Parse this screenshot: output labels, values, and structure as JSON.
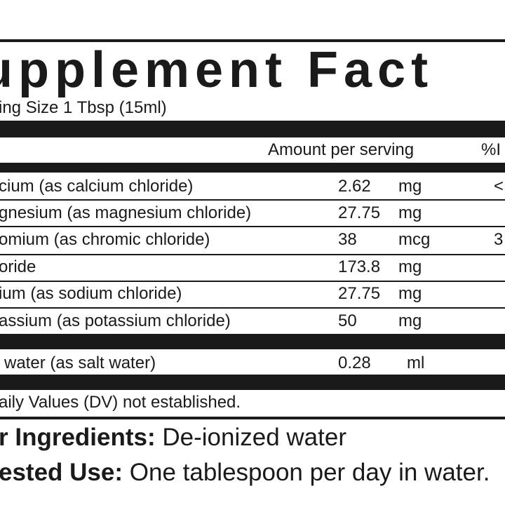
{
  "title": "upplement Fact",
  "serving_size": "ing Size 1 Tbsp (15ml)",
  "headers": {
    "amount": "Amount per serving",
    "dv": "%I"
  },
  "rows": [
    {
      "name": "cium (as calcium chloride)",
      "amount": "2.62",
      "unit": "mg",
      "dv": "<"
    },
    {
      "name": "gnesium (as magnesium chloride)",
      "amount": "27.75",
      "unit": "mg",
      "dv": ""
    },
    {
      "name": "omium (as chromic chloride)",
      "amount": "38",
      "unit": "mcg",
      "dv": "3"
    },
    {
      "name": "oride",
      "amount": "173.8",
      "unit": "mg",
      "dv": ""
    },
    {
      "name": "ium (as sodium chloride)",
      "amount": "27.75",
      "unit": "mg",
      "dv": ""
    },
    {
      "name": "assium (as potassium chloride)",
      "amount": "50",
      "unit": "mg",
      "dv": ""
    }
  ],
  "extra_row": {
    "name": "water (as salt water)",
    "amount": "0.28",
    "unit": "ml"
  },
  "footnote": "aily Values (DV) not established.",
  "other_ingredients": {
    "label": "r Ingredients:",
    "value": "De-ionized water"
  },
  "suggested_use": {
    "label": "ested Use:",
    "value": "One tablespoon per day in water."
  }
}
